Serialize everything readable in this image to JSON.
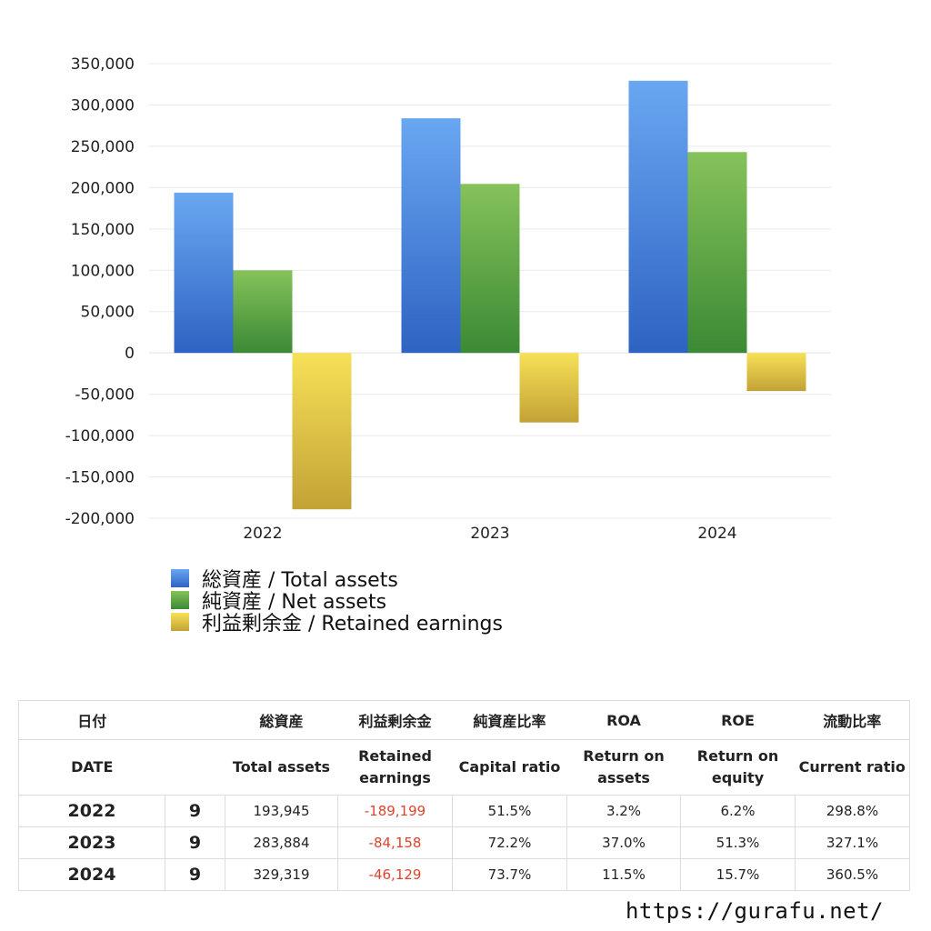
{
  "chart_data": {
    "type": "bar",
    "categories": [
      "2022",
      "2023",
      "2024"
    ],
    "series": [
      {
        "name": "総資産 / Total assets",
        "values": [
          193945,
          283884,
          329319
        ],
        "color_top": "#69a7f1",
        "color_bottom": "#2f63c3"
      },
      {
        "name": "純資産 / Net assets",
        "values": [
          100000,
          204500,
          243000
        ],
        "color_top": "#86c25a",
        "color_bottom": "#3b8a35"
      },
      {
        "name": "利益剰余金 / Retained earnings",
        "values": [
          -189199,
          -84158,
          -46129
        ],
        "color_top": "#f6e157",
        "color_bottom": "#c3a236"
      }
    ],
    "ylim": [
      -200000,
      350000
    ],
    "yticks": [
      350000,
      300000,
      250000,
      200000,
      150000,
      100000,
      50000,
      0,
      -50000,
      -100000,
      -150000,
      -200000
    ],
    "ytick_labels": [
      "350,000",
      "300,000",
      "250,000",
      "200,000",
      "150,000",
      "100,000",
      "50,000",
      "0",
      "-50,000",
      "-100,000",
      "-150,000",
      "-200,000"
    ],
    "grid": true,
    "legend": "bottom-left"
  },
  "table": {
    "header_jp": [
      "日付",
      "",
      "総資産",
      "利益剰余金",
      "純資産比率",
      "ROA",
      "ROE",
      "流動比率"
    ],
    "header_en": [
      "DATE",
      "",
      "Total assets",
      "Retained earnings",
      "Capital ratio",
      "Return on assets",
      "Return on equity",
      "Current ratio"
    ],
    "rows": [
      {
        "year": "2022",
        "month": "9",
        "total_assets": "193,945",
        "retained": "-189,199",
        "capital_ratio": "51.5%",
        "roa": "3.2%",
        "roe": "6.2%",
        "current": "298.8%"
      },
      {
        "year": "2023",
        "month": "9",
        "total_assets": "283,884",
        "retained": "-84,158",
        "capital_ratio": "72.2%",
        "roa": "37.0%",
        "roe": "51.3%",
        "current": "327.1%"
      },
      {
        "year": "2024",
        "month": "9",
        "total_assets": "329,319",
        "retained": "-46,129",
        "capital_ratio": "73.7%",
        "roa": "11.5%",
        "roe": "15.7%",
        "current": "360.5%"
      }
    ]
  },
  "footer": {
    "url": "https://gurafu.net/"
  }
}
